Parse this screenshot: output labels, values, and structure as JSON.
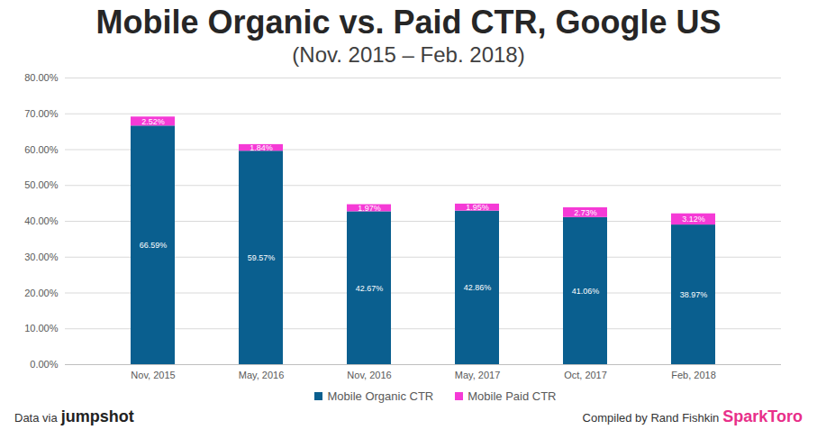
{
  "chart_data": {
    "type": "bar",
    "title": "Mobile Organic vs. Paid CTR, Google US",
    "subtitle": "(Nov. 2015 – Feb. 2018)",
    "categories": [
      "Nov, 2015",
      "May, 2016",
      "Nov, 2016",
      "May, 2017",
      "Oct, 2017",
      "Feb, 2018"
    ],
    "series": [
      {
        "name": "Mobile Organic CTR",
        "color": "#0a5f8f",
        "values": [
          66.59,
          59.57,
          42.67,
          42.86,
          41.06,
          38.97
        ],
        "value_labels": [
          "66.59%",
          "59.57%",
          "42.67%",
          "42.86%",
          "41.06%",
          "38.97%"
        ]
      },
      {
        "name": "Mobile Paid CTR",
        "color": "#f53ad6",
        "values": [
          2.52,
          1.84,
          1.97,
          1.95,
          2.73,
          3.12
        ],
        "value_labels": [
          "2.52%",
          "1.84%",
          "1.97%",
          "1.95%",
          "2.73%",
          "3.12%"
        ]
      }
    ],
    "stacked": true,
    "data_labels": true,
    "ylim": [
      0,
      80
    ],
    "yticks": [
      {
        "value": 0,
        "label": "0.00%"
      },
      {
        "value": 10,
        "label": "10.00%"
      },
      {
        "value": 20,
        "label": "20.00%"
      },
      {
        "value": 30,
        "label": "30.00%"
      },
      {
        "value": 40,
        "label": "40.00%"
      },
      {
        "value": 50,
        "label": "50.00%"
      },
      {
        "value": 60,
        "label": "60.00%"
      },
      {
        "value": 70,
        "label": "70.00%"
      },
      {
        "value": 80,
        "label": "80.00%"
      }
    ],
    "grid": true,
    "legend": "bottom",
    "footer": {
      "left": "Data via",
      "left_logo": "jumpshot",
      "right": "Compiled by Rand Fishkin",
      "right_logo": "SparkToro"
    }
  }
}
